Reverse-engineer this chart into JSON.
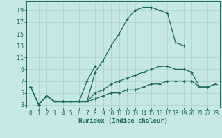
{
  "xlabel": "Humidex (Indice chaleur)",
  "ylabel": "",
  "xlim": [
    -0.5,
    23.5
  ],
  "ylim": [
    2.5,
    20.5
  ],
  "xticks": [
    0,
    1,
    2,
    3,
    4,
    5,
    6,
    7,
    8,
    9,
    10,
    11,
    12,
    13,
    14,
    15,
    16,
    17,
    18,
    19,
    20,
    21,
    22,
    23
  ],
  "yticks": [
    3,
    5,
    7,
    9,
    11,
    13,
    15,
    17,
    19
  ],
  "bg_color": "#c5e8e4",
  "grid_color": "#aad0cc",
  "line_color": "#1a6b5a",
  "curves": [
    {
      "x": [
        0,
        1,
        2,
        3,
        4,
        5,
        6,
        7,
        8,
        9,
        10,
        11,
        12,
        13,
        14,
        15,
        16,
        17,
        18,
        19
      ],
      "y": [
        6,
        3,
        4.5,
        3.5,
        3.5,
        3.5,
        3.5,
        3.5,
        8.5,
        10.5,
        13,
        15,
        17.5,
        19,
        19.5,
        19.5,
        19,
        18.5,
        13.5,
        13
      ]
    },
    {
      "x": [
        0,
        1,
        2,
        3,
        4,
        5,
        6,
        7,
        8
      ],
      "y": [
        6,
        3,
        4.5,
        3.5,
        3.5,
        3.5,
        3.5,
        7,
        9.5
      ]
    },
    {
      "x": [
        0,
        1,
        2,
        3,
        4,
        5,
        6,
        7,
        8,
        9,
        10,
        11,
        12,
        13,
        14,
        15,
        16,
        17,
        18,
        19,
        20,
        21,
        22,
        23
      ],
      "y": [
        6,
        3,
        4.5,
        3.5,
        3.5,
        3.5,
        3.5,
        3.5,
        5,
        5.5,
        6.5,
        7,
        7.5,
        8,
        8.5,
        9,
        9.5,
        9.5,
        9,
        9,
        8.5,
        6,
        6,
        6.5
      ]
    },
    {
      "x": [
        0,
        1,
        2,
        3,
        4,
        5,
        6,
        7,
        8,
        9,
        10,
        11,
        12,
        13,
        14,
        15,
        16,
        17,
        18,
        19,
        20,
        21,
        22,
        23
      ],
      "y": [
        6,
        3,
        4.5,
        3.5,
        3.5,
        3.5,
        3.5,
        3.5,
        4,
        4.5,
        5,
        5,
        5.5,
        5.5,
        6,
        6.5,
        6.5,
        7,
        7,
        7,
        7,
        6,
        6,
        6.5
      ]
    }
  ]
}
